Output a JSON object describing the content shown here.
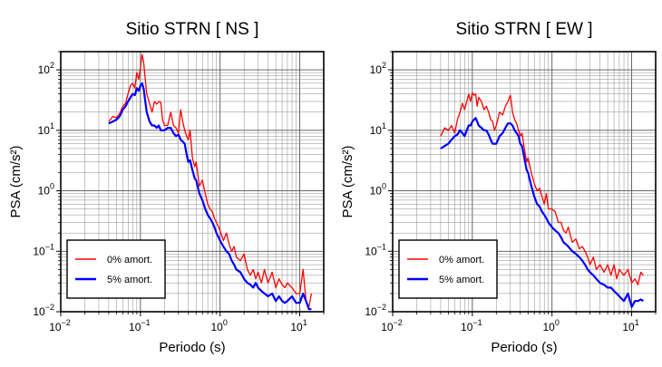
{
  "chart_data": [
    {
      "type": "line",
      "title": "Sitio STRN [ NS ]",
      "xlabel": "Periodo (s)",
      "ylabel": "PSA (cm/s²)",
      "xscale": "log",
      "yscale": "log",
      "xlim": [
        0.01,
        20
      ],
      "ylim": [
        0.01,
        200
      ],
      "x_ticks": [
        {
          "base": "10",
          "exp": "−2"
        },
        {
          "base": "10",
          "exp": "−1"
        },
        {
          "base": "10",
          "exp": "0"
        },
        {
          "base": "10",
          "exp": "1"
        }
      ],
      "y_ticks": [
        {
          "base": "10",
          "exp": "−2"
        },
        {
          "base": "10",
          "exp": "−1"
        },
        {
          "base": "10",
          "exp": "0"
        },
        {
          "base": "10",
          "exp": "1"
        },
        {
          "base": "10",
          "exp": "2"
        }
      ],
      "grid": true,
      "legend_position": "bottom-left",
      "series": [
        {
          "name": "0% amort.",
          "color": "#ff0000",
          "x": [
            0.04,
            0.045,
            0.05,
            0.055,
            0.06,
            0.065,
            0.07,
            0.075,
            0.08,
            0.085,
            0.09,
            0.095,
            0.1,
            0.105,
            0.11,
            0.115,
            0.12,
            0.13,
            0.14,
            0.15,
            0.16,
            0.17,
            0.18,
            0.19,
            0.2,
            0.22,
            0.24,
            0.26,
            0.28,
            0.3,
            0.32,
            0.34,
            0.36,
            0.38,
            0.4,
            0.42,
            0.45,
            0.48,
            0.5,
            0.55,
            0.6,
            0.65,
            0.7,
            0.75,
            0.8,
            0.85,
            0.9,
            1.0,
            1.1,
            1.2,
            1.3,
            1.4,
            1.5,
            1.6,
            1.8,
            2.0,
            2.2,
            2.4,
            2.6,
            2.8,
            3.0,
            3.3,
            3.6,
            4.0,
            4.5,
            5.0,
            5.5,
            6.0,
            6.5,
            7.0,
            8.0,
            9.0,
            10.0,
            11.0,
            12.0,
            13.0,
            14.0
          ],
          "values": [
            14,
            17,
            16,
            19,
            25,
            28,
            40,
            55,
            60,
            50,
            90,
            70,
            110,
            180,
            130,
            70,
            40,
            28,
            20,
            30,
            27,
            30,
            29,
            15,
            12,
            12,
            20,
            12,
            11,
            9,
            22,
            14,
            10,
            8,
            7,
            10,
            3.5,
            2.5,
            3,
            1.2,
            1.5,
            0.9,
            0.6,
            0.5,
            0.45,
            0.35,
            0.3,
            0.22,
            0.15,
            0.2,
            0.13,
            0.1,
            0.12,
            0.08,
            0.07,
            0.09,
            0.05,
            0.04,
            0.05,
            0.035,
            0.045,
            0.03,
            0.05,
            0.03,
            0.045,
            0.025,
            0.035,
            0.028,
            0.025,
            0.03,
            0.025,
            0.02,
            0.02,
            0.05,
            0.015,
            0.012,
            0.02
          ]
        },
        {
          "name": "5% amort.",
          "color": "#0000ff",
          "x": [
            0.04,
            0.045,
            0.05,
            0.055,
            0.06,
            0.065,
            0.07,
            0.075,
            0.08,
            0.085,
            0.09,
            0.095,
            0.1,
            0.105,
            0.11,
            0.115,
            0.12,
            0.13,
            0.14,
            0.15,
            0.16,
            0.17,
            0.18,
            0.19,
            0.2,
            0.22,
            0.24,
            0.26,
            0.28,
            0.3,
            0.32,
            0.34,
            0.36,
            0.38,
            0.4,
            0.42,
            0.45,
            0.48,
            0.5,
            0.55,
            0.6,
            0.65,
            0.7,
            0.75,
            0.8,
            0.85,
            0.9,
            1.0,
            1.1,
            1.2,
            1.3,
            1.4,
            1.5,
            1.6,
            1.8,
            2.0,
            2.2,
            2.4,
            2.6,
            2.8,
            3.0,
            3.3,
            3.6,
            4.0,
            4.5,
            5.0,
            5.5,
            6.0,
            6.5,
            7.0,
            8.0,
            9.0,
            10.0,
            11.0,
            12.0,
            13.0,
            14.0
          ],
          "values": [
            13,
            14,
            15,
            17,
            22,
            25,
            30,
            35,
            40,
            38,
            50,
            45,
            55,
            60,
            48,
            30,
            20,
            14,
            12,
            12,
            11,
            12,
            10,
            10,
            10,
            11,
            11,
            9,
            8,
            8.5,
            7,
            6.5,
            6,
            4,
            3,
            3.2,
            2.2,
            1.6,
            1.5,
            0.9,
            0.7,
            0.5,
            0.4,
            0.35,
            0.3,
            0.25,
            0.2,
            0.15,
            0.12,
            0.1,
            0.09,
            0.07,
            0.06,
            0.05,
            0.045,
            0.035,
            0.03,
            0.028,
            0.025,
            0.03,
            0.025,
            0.022,
            0.02,
            0.018,
            0.02,
            0.015,
            0.018,
            0.015,
            0.014,
            0.015,
            0.018,
            0.014,
            0.014,
            0.02,
            0.015,
            0.011,
            0.011
          ]
        }
      ]
    },
    {
      "type": "line",
      "title": "Sitio STRN [ EW ]",
      "xlabel": "Periodo (s)",
      "ylabel": "PSA (cm/s²)",
      "xscale": "log",
      "yscale": "log",
      "xlim": [
        0.01,
        20
      ],
      "ylim": [
        0.01,
        200
      ],
      "x_ticks": [
        {
          "base": "10",
          "exp": "−2"
        },
        {
          "base": "10",
          "exp": "−1"
        },
        {
          "base": "10",
          "exp": "0"
        },
        {
          "base": "10",
          "exp": "1"
        }
      ],
      "y_ticks": [
        {
          "base": "10",
          "exp": "−2"
        },
        {
          "base": "10",
          "exp": "−1"
        },
        {
          "base": "10",
          "exp": "0"
        },
        {
          "base": "10",
          "exp": "1"
        },
        {
          "base": "10",
          "exp": "2"
        }
      ],
      "grid": true,
      "legend_position": "bottom-left",
      "series": [
        {
          "name": "0% amort.",
          "color": "#ff0000",
          "x": [
            0.04,
            0.045,
            0.05,
            0.055,
            0.06,
            0.065,
            0.07,
            0.075,
            0.08,
            0.085,
            0.09,
            0.095,
            0.1,
            0.105,
            0.11,
            0.115,
            0.12,
            0.13,
            0.14,
            0.15,
            0.16,
            0.17,
            0.18,
            0.19,
            0.2,
            0.22,
            0.24,
            0.26,
            0.28,
            0.3,
            0.32,
            0.34,
            0.36,
            0.38,
            0.4,
            0.42,
            0.45,
            0.48,
            0.5,
            0.55,
            0.6,
            0.65,
            0.7,
            0.75,
            0.8,
            0.85,
            0.9,
            1.0,
            1.1,
            1.2,
            1.3,
            1.4,
            1.5,
            1.6,
            1.8,
            2.0,
            2.2,
            2.4,
            2.6,
            2.8,
            3.0,
            3.3,
            3.6,
            4.0,
            4.5,
            5.0,
            5.5,
            6.0,
            6.5,
            7.0,
            8.0,
            9.0,
            10.0,
            11.0,
            12.0,
            13.0,
            14.0
          ],
          "values": [
            8,
            11,
            10,
            12,
            9,
            15,
            20,
            28,
            22,
            30,
            40,
            30,
            42,
            38,
            40,
            25,
            35,
            30,
            22,
            25,
            20,
            15,
            14,
            10,
            12,
            20,
            18,
            25,
            30,
            38,
            20,
            15,
            13,
            10,
            8,
            9,
            5,
            3,
            3.5,
            2,
            1.3,
            1.0,
            1.1,
            0.8,
            0.6,
            0.9,
            0.5,
            0.5,
            0.45,
            0.3,
            0.3,
            0.22,
            0.2,
            0.25,
            0.14,
            0.16,
            0.11,
            0.12,
            0.1,
            0.08,
            0.06,
            0.08,
            0.05,
            0.06,
            0.045,
            0.06,
            0.04,
            0.06,
            0.035,
            0.05,
            0.04,
            0.05,
            0.03,
            0.035,
            0.028,
            0.045,
            0.04
          ]
        },
        {
          "name": "5% amort.",
          "color": "#0000ff",
          "x": [
            0.04,
            0.045,
            0.05,
            0.055,
            0.06,
            0.065,
            0.07,
            0.075,
            0.08,
            0.085,
            0.09,
            0.095,
            0.1,
            0.105,
            0.11,
            0.115,
            0.12,
            0.13,
            0.14,
            0.15,
            0.16,
            0.17,
            0.18,
            0.19,
            0.2,
            0.22,
            0.24,
            0.26,
            0.28,
            0.3,
            0.32,
            0.34,
            0.36,
            0.38,
            0.4,
            0.42,
            0.45,
            0.48,
            0.5,
            0.55,
            0.6,
            0.65,
            0.7,
            0.75,
            0.8,
            0.85,
            0.9,
            1.0,
            1.1,
            1.2,
            1.3,
            1.4,
            1.5,
            1.6,
            1.8,
            2.0,
            2.2,
            2.4,
            2.6,
            2.8,
            3.0,
            3.3,
            3.6,
            4.0,
            4.5,
            5.0,
            5.5,
            6.0,
            6.5,
            7.0,
            8.0,
            9.0,
            10.0,
            11.0,
            12.0,
            13.0,
            14.0
          ],
          "values": [
            5,
            5.5,
            6,
            7,
            8,
            8.5,
            10,
            9,
            8,
            10,
            12,
            12,
            14,
            15,
            16,
            14,
            12,
            11,
            10,
            10,
            8.5,
            7,
            6,
            6,
            6,
            8,
            9,
            11,
            13,
            13,
            12,
            10,
            9,
            8,
            6,
            5.5,
            3.5,
            2.2,
            2,
            1.2,
            0.8,
            0.6,
            0.55,
            0.45,
            0.4,
            0.35,
            0.3,
            0.25,
            0.22,
            0.2,
            0.17,
            0.14,
            0.13,
            0.12,
            0.1,
            0.09,
            0.08,
            0.07,
            0.06,
            0.05,
            0.045,
            0.04,
            0.035,
            0.03,
            0.028,
            0.025,
            0.025,
            0.022,
            0.02,
            0.018,
            0.015,
            0.02,
            0.012,
            0.015,
            0.015,
            0.016,
            0.015
          ]
        }
      ]
    }
  ]
}
